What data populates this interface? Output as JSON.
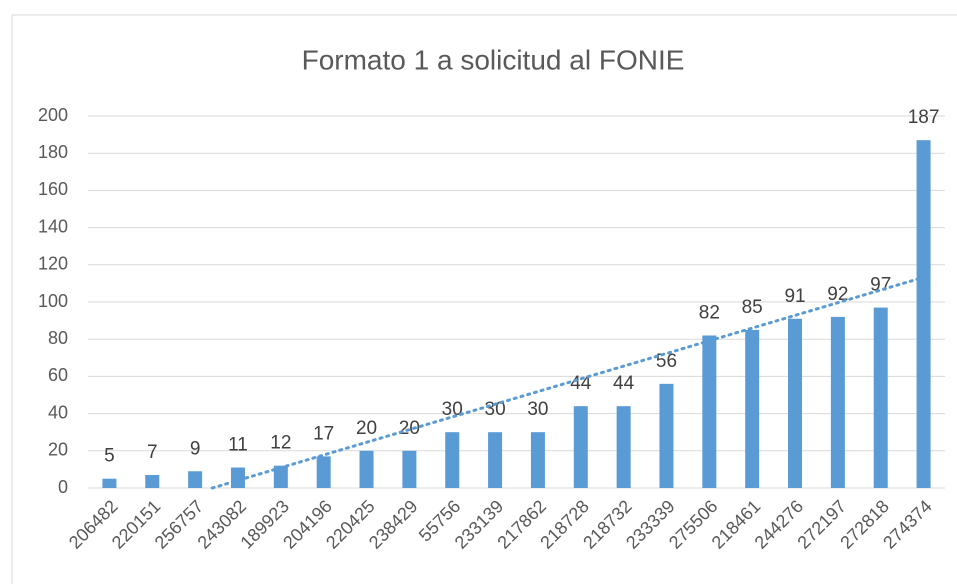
{
  "chart_data": {
    "type": "bar",
    "title": "Formato 1 a solicitud al FONIE",
    "categories": [
      "206482",
      "220151",
      "256757",
      "243082",
      "189923",
      "204196",
      "220425",
      "238429",
      "55756",
      "233139",
      "217862",
      "218728",
      "218732",
      "233339",
      "275506",
      "218461",
      "244276",
      "272197",
      "272818",
      "274374"
    ],
    "values": [
      5,
      7,
      9,
      11,
      12,
      17,
      20,
      20,
      30,
      30,
      30,
      44,
      44,
      56,
      82,
      85,
      91,
      92,
      97,
      187
    ],
    "color": "#5b9bd5",
    "ylim": [
      0,
      200
    ],
    "yticks": [
      0,
      20,
      40,
      60,
      80,
      100,
      120,
      140,
      160,
      180,
      200
    ],
    "grid": true,
    "trendline": "linear"
  }
}
